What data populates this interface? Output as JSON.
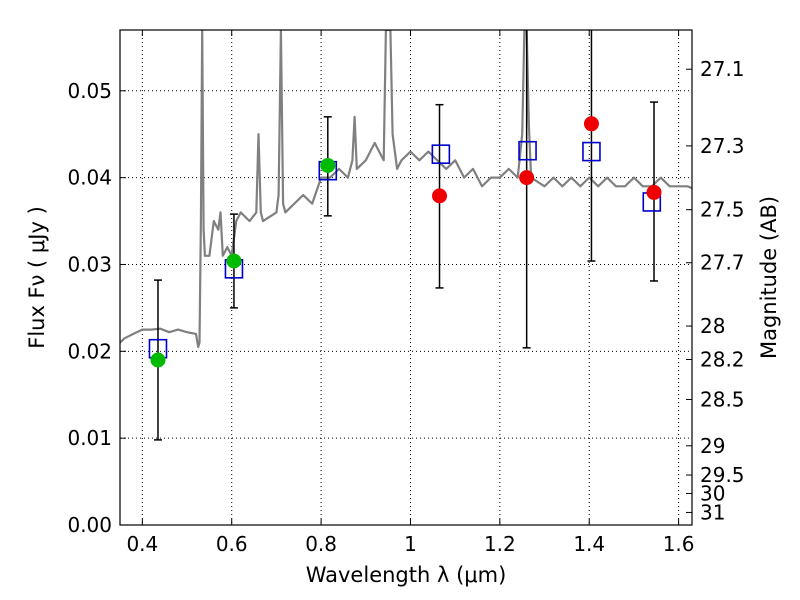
{
  "chart_data": {
    "type": "scatter",
    "title": "",
    "xlabel": "Wavelength  λ (μm)",
    "ylabel": "Flux  Fν  ( μJy )",
    "ylabel_right": "Magnitude (AB)",
    "xlim": [
      0.35,
      1.63
    ],
    "ylim": [
      0.0,
      0.057
    ],
    "grid": true,
    "x_ticks": [
      {
        "value": 0.4,
        "label": "0.4"
      },
      {
        "value": 0.6,
        "label": "0.6"
      },
      {
        "value": 0.8,
        "label": "0.8"
      },
      {
        "value": 1.0,
        "label": "1"
      },
      {
        "value": 1.2,
        "label": "1.2"
      },
      {
        "value": 1.4,
        "label": "1.4"
      },
      {
        "value": 1.6,
        "label": "1.6"
      }
    ],
    "y_ticks": [
      {
        "value": 0.0,
        "label": "0.00"
      },
      {
        "value": 0.01,
        "label": "0.01"
      },
      {
        "value": 0.02,
        "label": "0.02"
      },
      {
        "value": 0.03,
        "label": "0.03"
      },
      {
        "value": 0.04,
        "label": "0.04"
      },
      {
        "value": 0.05,
        "label": "0.05"
      }
    ],
    "right_ticks": [
      {
        "mag": 27.1,
        "label": "27.1"
      },
      {
        "mag": 27.3,
        "label": "27.3"
      },
      {
        "mag": 27.5,
        "label": "27.5"
      },
      {
        "mag": 27.7,
        "label": "27.7"
      },
      {
        "mag": 28.0,
        "label": "28"
      },
      {
        "mag": 28.2,
        "label": "28.2"
      },
      {
        "mag": 28.5,
        "label": "28.5"
      },
      {
        "mag": 29.0,
        "label": "29"
      },
      {
        "mag": 29.5,
        "label": "29.5"
      },
      {
        "mag": 30.0,
        "label": "30"
      },
      {
        "mag": 31.0,
        "label": "31"
      }
    ],
    "series": [
      {
        "type": "line",
        "color": "#808080",
        "x": [
          0.35,
          0.36,
          0.38,
          0.4,
          0.42,
          0.44,
          0.46,
          0.48,
          0.5,
          0.52,
          0.525,
          0.528,
          0.531,
          0.534,
          0.537,
          0.54,
          0.55,
          0.56,
          0.57,
          0.575,
          0.58,
          0.59,
          0.6,
          0.61,
          0.62,
          0.64,
          0.655,
          0.66,
          0.665,
          0.67,
          0.7,
          0.705,
          0.71,
          0.715,
          0.72,
          0.74,
          0.76,
          0.78,
          0.8,
          0.82,
          0.84,
          0.86,
          0.87,
          0.875,
          0.88,
          0.9,
          0.92,
          0.94,
          0.945,
          0.95,
          0.955,
          0.96,
          0.97,
          0.98,
          1.0,
          1.02,
          1.04,
          1.06,
          1.08,
          1.1,
          1.12,
          1.14,
          1.16,
          1.18,
          1.2,
          1.22,
          1.24,
          1.25,
          1.255,
          1.26,
          1.265,
          1.27,
          1.3,
          1.32,
          1.34,
          1.36,
          1.38,
          1.4,
          1.42,
          1.44,
          1.46,
          1.48,
          1.5,
          1.52,
          1.54,
          1.56,
          1.58,
          1.6,
          1.62,
          1.63
        ],
        "y": [
          0.021,
          0.0215,
          0.022,
          0.0225,
          0.0225,
          0.0226,
          0.0222,
          0.0225,
          0.0222,
          0.022,
          0.0205,
          0.021,
          0.035,
          0.057,
          0.034,
          0.031,
          0.031,
          0.035,
          0.034,
          0.036,
          0.031,
          0.032,
          0.031,
          0.035,
          0.036,
          0.035,
          0.036,
          0.045,
          0.036,
          0.035,
          0.036,
          0.038,
          0.057,
          0.037,
          0.036,
          0.037,
          0.038,
          0.037,
          0.04,
          0.04,
          0.041,
          0.04,
          0.042,
          0.047,
          0.041,
          0.042,
          0.044,
          0.042,
          0.057,
          0.057,
          0.057,
          0.045,
          0.041,
          0.042,
          0.043,
          0.042,
          0.043,
          0.042,
          0.041,
          0.042,
          0.04,
          0.041,
          0.039,
          0.04,
          0.04,
          0.041,
          0.04,
          0.045,
          0.057,
          0.057,
          0.046,
          0.04,
          0.039,
          0.04,
          0.039,
          0.04,
          0.039,
          0.04,
          0.039,
          0.04,
          0.039,
          0.039,
          0.04,
          0.039,
          0.039,
          0.04,
          0.039,
          0.039,
          0.039,
          0.0388
        ]
      },
      {
        "type": "errorbar",
        "color": "#000000",
        "points": [
          {
            "x": 0.435,
            "lo": 0.0098,
            "hi": 0.0282
          },
          {
            "x": 0.605,
            "lo": 0.025,
            "hi": 0.0358
          },
          {
            "x": 0.815,
            "lo": 0.0356,
            "hi": 0.047
          },
          {
            "x": 1.065,
            "lo": 0.0273,
            "hi": 0.0484
          },
          {
            "x": 1.26,
            "lo": 0.0204,
            "hi": 0.057
          },
          {
            "x": 1.405,
            "lo": 0.0304,
            "hi": 0.057
          },
          {
            "x": 1.545,
            "lo": 0.0281,
            "hi": 0.0487
          }
        ]
      },
      {
        "type": "marker",
        "marker": "square",
        "color": "#0000cc",
        "x": [
          0.435,
          0.605,
          0.815,
          1.068,
          1.262,
          1.405,
          1.54
        ],
        "y": [
          0.0203,
          0.0295,
          0.0408,
          0.0427,
          0.0431,
          0.043,
          0.0372
        ]
      },
      {
        "type": "marker",
        "marker": "circle",
        "color": "#00bb00",
        "x": [
          0.435,
          0.605,
          0.815
        ],
        "y": [
          0.019,
          0.0304,
          0.0414
        ]
      },
      {
        "type": "marker",
        "marker": "circle",
        "color": "#ee0000",
        "x": [
          1.065,
          1.26,
          1.405,
          1.545
        ],
        "y": [
          0.0379,
          0.04,
          0.0462,
          0.0383
        ]
      }
    ]
  }
}
